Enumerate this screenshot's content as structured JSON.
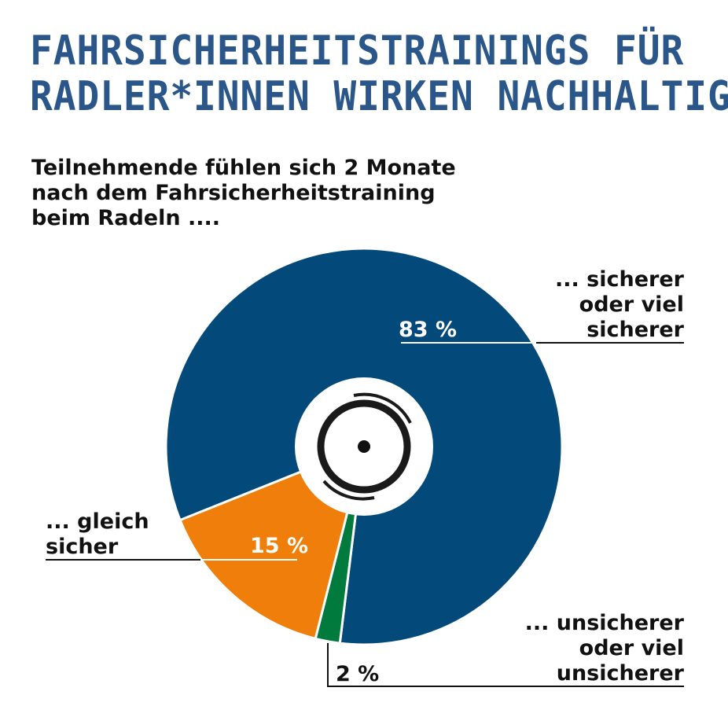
{
  "title": {
    "line1": "FAHRSICHERHEITSTRAININGS FÜR",
    "line2": "RADLER*INNEN WIRKEN NACHHALTIG!"
  },
  "subtitle": {
    "line1": "Teilnehmende fühlen sich 2 Monate",
    "line2": "nach dem Fahrsicherheitstraining",
    "line3": "beim Radeln ...."
  },
  "chart_data": {
    "type": "pie",
    "donut": true,
    "center_icon": "wheel-icon",
    "slices": [
      {
        "label": [
          "... sicherer",
          "oder viel",
          "sicherer"
        ],
        "value": 83,
        "value_label": "83 %",
        "color": "#034a7b"
      },
      {
        "label": [
          "... unsicherer",
          "oder viel",
          "unsicherer"
        ],
        "value": 2,
        "value_label": "2 %",
        "color": "#007a3d"
      },
      {
        "label": [
          "... gleich",
          "sicher"
        ],
        "value": 15,
        "value_label": "15 %",
        "color": "#ef7f0a"
      }
    ]
  }
}
